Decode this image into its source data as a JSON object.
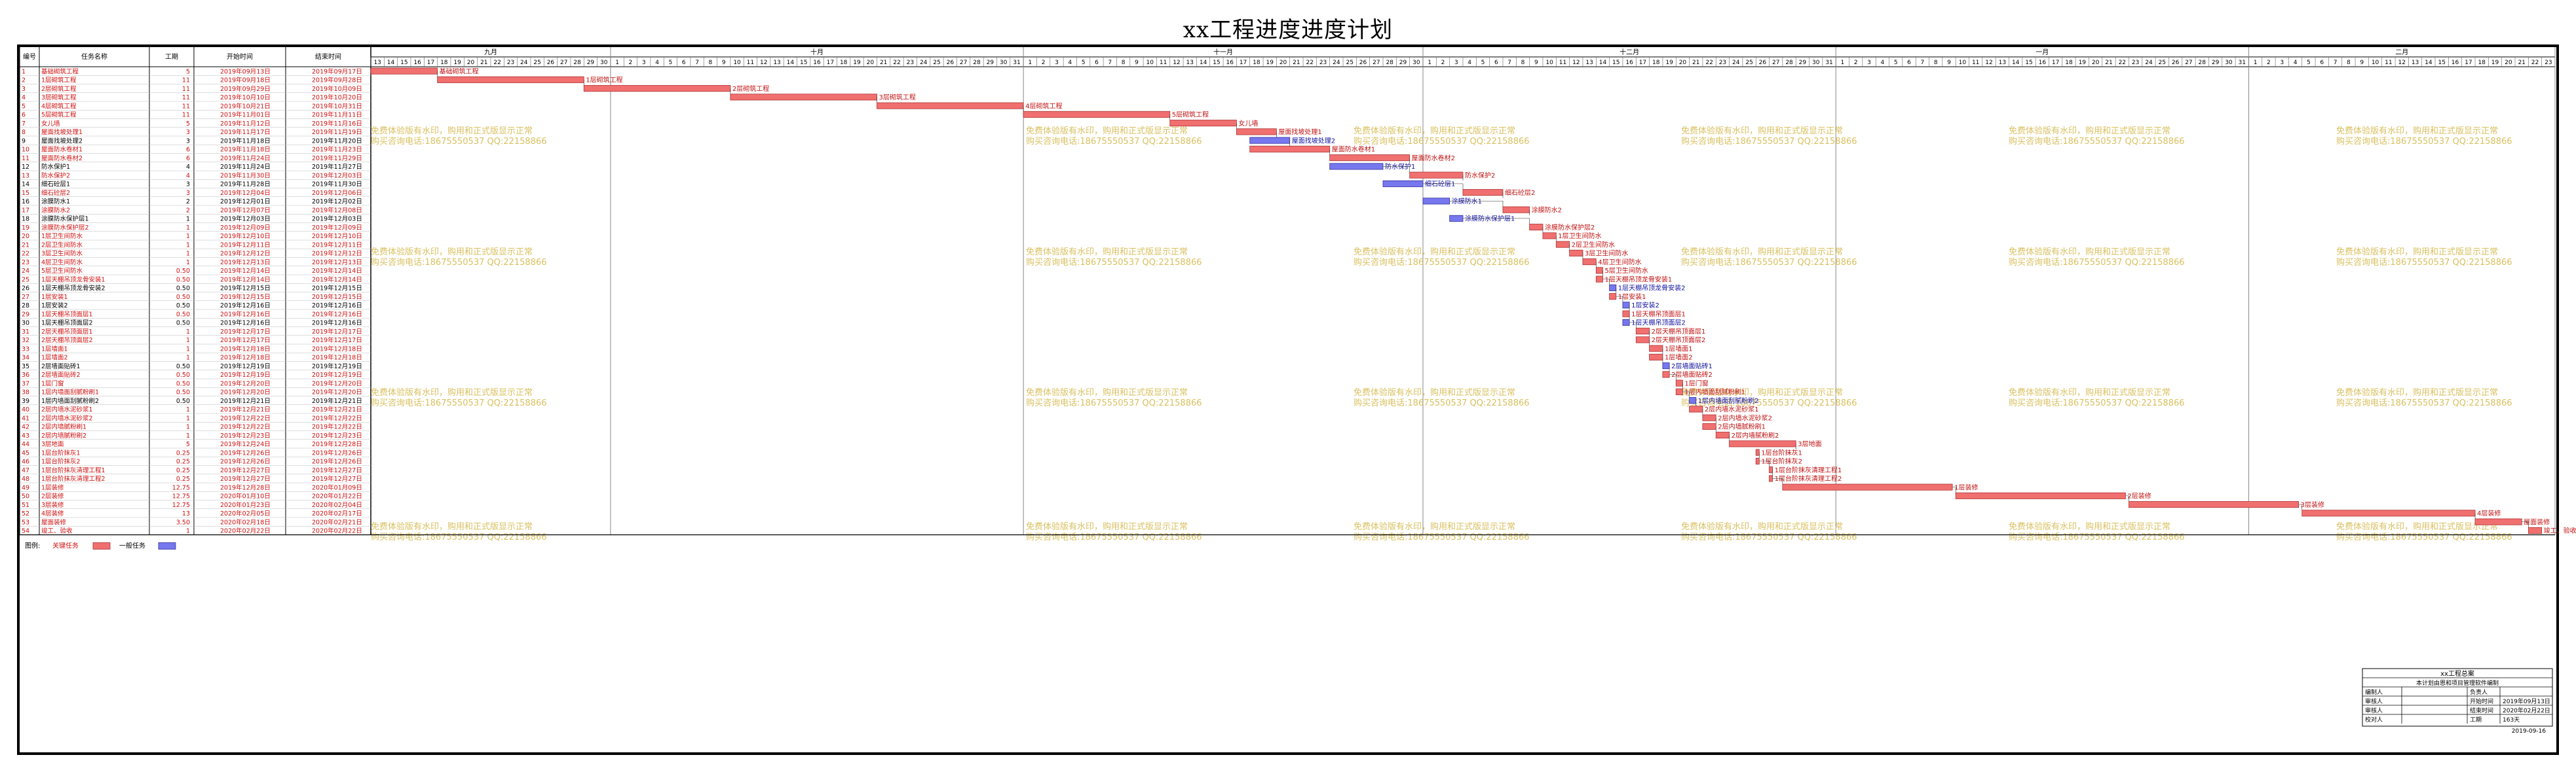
{
  "title": "xx工程进度进度计划",
  "table_header": {
    "id": "编号",
    "name": "任务名称",
    "duration": "工期",
    "start": "开始时间",
    "end": "结束时间"
  },
  "months": [
    {
      "label": "九月",
      "days": [
        13,
        14,
        15,
        16,
        17,
        18,
        19,
        20,
        21,
        22,
        23,
        24,
        25,
        26,
        27,
        28,
        29,
        30
      ]
    },
    {
      "label": "十月",
      "days": [
        1,
        2,
        3,
        4,
        5,
        6,
        7,
        8,
        9,
        10,
        11,
        12,
        13,
        14,
        15,
        16,
        17,
        18,
        19,
        20,
        21,
        22,
        23,
        24,
        25,
        26,
        27,
        28,
        29,
        30,
        31
      ]
    },
    {
      "label": "十一月",
      "days": [
        1,
        2,
        3,
        4,
        5,
        6,
        7,
        8,
        9,
        10,
        11,
        12,
        13,
        14,
        15,
        16,
        17,
        18,
        19,
        20,
        21,
        22,
        23,
        24,
        25,
        26,
        27,
        28,
        29,
        30
      ]
    },
    {
      "label": "十二月",
      "days": [
        1,
        2,
        3,
        4,
        5,
        6,
        7,
        8,
        9,
        10,
        11,
        12,
        13,
        14,
        15,
        16,
        17,
        18,
        19,
        20,
        21,
        22,
        23,
        24,
        25,
        26,
        27,
        28,
        29,
        30,
        31
      ]
    },
    {
      "label": "一月",
      "days": [
        1,
        2,
        3,
        4,
        5,
        6,
        7,
        8,
        9,
        10,
        11,
        12,
        13,
        14,
        15,
        16,
        17,
        18,
        19,
        20,
        21,
        22,
        23,
        24,
        25,
        26,
        27,
        28,
        29,
        30,
        31
      ]
    },
    {
      "label": "二月",
      "days": [
        1,
        2,
        3,
        4,
        5,
        6,
        7,
        8,
        9,
        10,
        11,
        12,
        13,
        14,
        15,
        16,
        17,
        18,
        19,
        20,
        21,
        22,
        23
      ]
    }
  ],
  "watermark": {
    "line1": "免费体验版有水印，购用和正式版显示正常",
    "line2": "购买咨询电话:18675550537 QQ:22158866"
  },
  "legend": {
    "label": "图例:",
    "critical": "关键任务",
    "normal": "一般任务",
    "critical_color": "#f07070",
    "normal_color": "#7777ee"
  },
  "info_box": {
    "title": "xx工程总案",
    "subtitle": "本计划由恩和项目管理软件编制",
    "rows": [
      [
        "编制人",
        "",
        "负责人",
        ""
      ],
      [
        "审核人",
        "",
        "开始时间",
        "2019年09月13日"
      ],
      [
        "审核人",
        "",
        "结束时间",
        "2020年02月22日"
      ],
      [
        "校对人",
        "",
        "工期",
        "163天"
      ]
    ],
    "date": "2019-09-16"
  },
  "chart_data": {
    "type": "gantt",
    "title": "xx工程进度进度计划",
    "x_range": [
      "2019-09-13",
      "2020-02-23"
    ],
    "tasks": [
      {
        "id": "1",
        "name": "基础砌筑工程",
        "duration": "5",
        "start": "2019年09月13日",
        "end": "2019年09月17日",
        "critical": true
      },
      {
        "id": "2",
        "name": "1层砌筑工程",
        "duration": "11",
        "start": "2019年09月18日",
        "end": "2019年09月28日",
        "critical": true
      },
      {
        "id": "3",
        "name": "2层砌筑工程",
        "duration": "11",
        "start": "2019年09月29日",
        "end": "2019年10月09日",
        "critical": true
      },
      {
        "id": "4",
        "name": "3层砌筑工程",
        "duration": "11",
        "start": "2019年10月10日",
        "end": "2019年10月20日",
        "critical": true
      },
      {
        "id": "5",
        "name": "4层砌筑工程",
        "duration": "11",
        "start": "2019年10月21日",
        "end": "2019年10月31日",
        "critical": true
      },
      {
        "id": "6",
        "name": "5层砌筑工程",
        "duration": "11",
        "start": "2019年11月01日",
        "end": "2019年11月11日",
        "critical": true
      },
      {
        "id": "7",
        "name": "女儿墙",
        "duration": "5",
        "start": "2019年11月12日",
        "end": "2019年11月16日",
        "critical": true
      },
      {
        "id": "8",
        "name": "屋面找坡处理1",
        "duration": "3",
        "start": "2019年11月17日",
        "end": "2019年11月19日",
        "critical": true
      },
      {
        "id": "9",
        "name": "屋面找坡处理2",
        "duration": "3",
        "start": "2019年11月18日",
        "end": "2019年11月20日",
        "critical": false
      },
      {
        "id": "10",
        "name": "屋面防水卷材1",
        "duration": "6",
        "start": "2019年11月18日",
        "end": "2019年11月23日",
        "critical": true
      },
      {
        "id": "11",
        "name": "屋面防水卷材2",
        "duration": "6",
        "start": "2019年11月24日",
        "end": "2019年11月29日",
        "critical": true
      },
      {
        "id": "12",
        "name": "防水保护1",
        "duration": "4",
        "start": "2019年11月24日",
        "end": "2019年11月27日",
        "critical": false
      },
      {
        "id": "13",
        "name": "防水保护2",
        "duration": "4",
        "start": "2019年11月30日",
        "end": "2019年12月03日",
        "critical": true
      },
      {
        "id": "14",
        "name": "细石砼层1",
        "duration": "3",
        "start": "2019年11月28日",
        "end": "2019年11月30日",
        "critical": false
      },
      {
        "id": "15",
        "name": "细石砼层2",
        "duration": "3",
        "start": "2019年12月04日",
        "end": "2019年12月06日",
        "critical": true
      },
      {
        "id": "16",
        "name": "涂膜防水1",
        "duration": "2",
        "start": "2019年12月01日",
        "end": "2019年12月02日",
        "critical": false
      },
      {
        "id": "17",
        "name": "涂膜防水2",
        "duration": "2",
        "start": "2019年12月07日",
        "end": "2019年12月08日",
        "critical": true
      },
      {
        "id": "18",
        "name": "涂膜防水保护层1",
        "duration": "1",
        "start": "2019年12月03日",
        "end": "2019年12月03日",
        "critical": false
      },
      {
        "id": "19",
        "name": "涂膜防水保护层2",
        "duration": "1",
        "start": "2019年12月09日",
        "end": "2019年12月09日",
        "critical": true
      },
      {
        "id": "20",
        "name": "1层卫生间防水",
        "duration": "1",
        "start": "2019年12月10日",
        "end": "2019年12月10日",
        "critical": true
      },
      {
        "id": "21",
        "name": "2层卫生间防水",
        "duration": "1",
        "start": "2019年12月11日",
        "end": "2019年12月11日",
        "critical": true
      },
      {
        "id": "22",
        "name": "3层卫生间防水",
        "duration": "1",
        "start": "2019年12月12日",
        "end": "2019年12月12日",
        "critical": true
      },
      {
        "id": "23",
        "name": "4层卫生间防水",
        "duration": "1",
        "start": "2019年12月13日",
        "end": "2019年12月13日",
        "critical": true
      },
      {
        "id": "24",
        "name": "5层卫生间防水",
        "duration": "0.50",
        "start": "2019年12月14日",
        "end": "2019年12月14日",
        "critical": true
      },
      {
        "id": "25",
        "name": "1层天棚吊顶龙骨安装1",
        "duration": "0.50",
        "start": "2019年12月14日",
        "end": "2019年12月14日",
        "critical": true
      },
      {
        "id": "26",
        "name": "1层天棚吊顶龙骨安装2",
        "duration": "0.50",
        "start": "2019年12月15日",
        "end": "2019年12月15日",
        "critical": false
      },
      {
        "id": "27",
        "name": "1层安装1",
        "duration": "0.50",
        "start": "2019年12月15日",
        "end": "2019年12月15日",
        "critical": true
      },
      {
        "id": "28",
        "name": "1层安装2",
        "duration": "0.50",
        "start": "2019年12月16日",
        "end": "2019年12月16日",
        "critical": false
      },
      {
        "id": "29",
        "name": "1层天棚吊顶面层1",
        "duration": "0.50",
        "start": "2019年12月16日",
        "end": "2019年12月16日",
        "critical": true
      },
      {
        "id": "30",
        "name": "1层天棚吊顶面层2",
        "duration": "0.50",
        "start": "2019年12月16日",
        "end": "2019年12月16日",
        "critical": false
      },
      {
        "id": "31",
        "name": "2层天棚吊顶面层1",
        "duration": "1",
        "start": "2019年12月17日",
        "end": "2019年12月17日",
        "critical": true
      },
      {
        "id": "32",
        "name": "2层天棚吊顶面层2",
        "duration": "1",
        "start": "2019年12月17日",
        "end": "2019年12月17日",
        "critical": true
      },
      {
        "id": "33",
        "name": "1层墙面1",
        "duration": "1",
        "start": "2019年12月18日",
        "end": "2019年12月18日",
        "critical": true
      },
      {
        "id": "34",
        "name": "1层墙面2",
        "duration": "1",
        "start": "2019年12月18日",
        "end": "2019年12月18日",
        "critical": true
      },
      {
        "id": "35",
        "name": "2层墙面贴砖1",
        "duration": "0.50",
        "start": "2019年12月19日",
        "end": "2019年12月19日",
        "critical": false
      },
      {
        "id": "36",
        "name": "2层墙面贴砖2",
        "duration": "0.50",
        "start": "2019年12月19日",
        "end": "2019年12月19日",
        "critical": true
      },
      {
        "id": "37",
        "name": "1层门窗",
        "duration": "0.50",
        "start": "2019年12月20日",
        "end": "2019年12月20日",
        "critical": true
      },
      {
        "id": "38",
        "name": "1层内墙面刮腻粉刷1",
        "duration": "0.50",
        "start": "2019年12月20日",
        "end": "2019年12月20日",
        "critical": true
      },
      {
        "id": "39",
        "name": "1层内墙面刮腻粉刷2",
        "duration": "0.50",
        "start": "2019年12月21日",
        "end": "2019年12月21日",
        "critical": false
      },
      {
        "id": "40",
        "name": "2层内墙水泥砂浆1",
        "duration": "1",
        "start": "2019年12月21日",
        "end": "2019年12月21日",
        "critical": true
      },
      {
        "id": "41",
        "name": "2层内墙水泥砂浆2",
        "duration": "1",
        "start": "2019年12月22日",
        "end": "2019年12月22日",
        "critical": true
      },
      {
        "id": "42",
        "name": "2层内墙腻粉刷1",
        "duration": "1",
        "start": "2019年12月22日",
        "end": "2019年12月22日",
        "critical": true
      },
      {
        "id": "43",
        "name": "2层内墙腻粉刷2",
        "duration": "1",
        "start": "2019年12月23日",
        "end": "2019年12月23日",
        "critical": true
      },
      {
        "id": "44",
        "name": "3层地面",
        "duration": "5",
        "start": "2019年12月24日",
        "end": "2019年12月28日",
        "critical": true
      },
      {
        "id": "45",
        "name": "1层台阶抹灰1",
        "duration": "0.25",
        "start": "2019年12月26日",
        "end": "2019年12月26日",
        "critical": true
      },
      {
        "id": "46",
        "name": "1层台阶抹灰2",
        "duration": "0.25",
        "start": "2019年12月26日",
        "end": "2019年12月26日",
        "critical": true
      },
      {
        "id": "47",
        "name": "1层台阶抹灰清理工程1",
        "duration": "0.25",
        "start": "2019年12月27日",
        "end": "2019年12月27日",
        "critical": true
      },
      {
        "id": "48",
        "name": "1层台阶抹灰清理工程2",
        "duration": "0.25",
        "start": "2019年12月27日",
        "end": "2019年12月27日",
        "critical": true
      },
      {
        "id": "49",
        "name": "1层装修",
        "duration": "12.75",
        "start": "2019年12月28日",
        "end": "2020年01月09日",
        "critical": true
      },
      {
        "id": "50",
        "name": "2层装修",
        "duration": "12.75",
        "start": "2020年01月10日",
        "end": "2020年01月22日",
        "critical": true
      },
      {
        "id": "51",
        "name": "3层装修",
        "duration": "12.75",
        "start": "2020年01月23日",
        "end": "2020年02月04日",
        "critical": true
      },
      {
        "id": "52",
        "name": "4层装修",
        "duration": "13",
        "start": "2020年02月05日",
        "end": "2020年02月17日",
        "critical": true
      },
      {
        "id": "53",
        "name": "屋面装修",
        "duration": "3.50",
        "start": "2020年02月18日",
        "end": "2020年02月21日",
        "critical": true
      },
      {
        "id": "54",
        "name": "竣工、验收",
        "duration": "1",
        "start": "2020年02月22日",
        "end": "2020年02月22日",
        "critical": true
      }
    ]
  }
}
